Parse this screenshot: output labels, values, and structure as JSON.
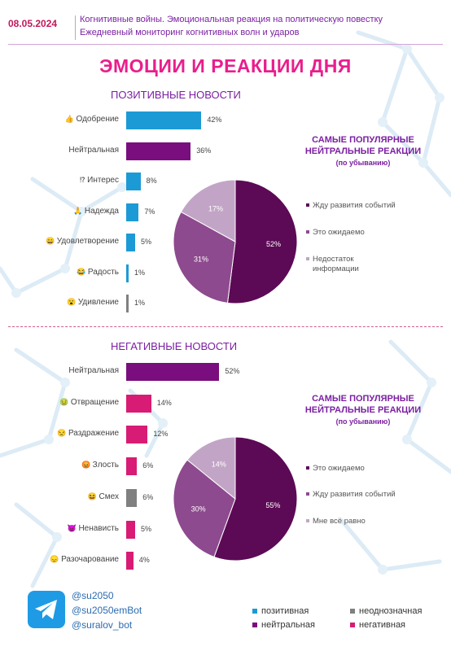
{
  "header": {
    "date": "08.05.2024",
    "subtitle_line1": "Когнитивные войны. Эмоциональная реакция на политическую повестку",
    "subtitle_line2": "Ежедневный мониторинг когнитивных волн и ударов"
  },
  "title": "ЭМОЦИИ И РЕАКЦИИ ДНЯ",
  "colors": {
    "positive": "#1c9ad6",
    "neutral": "#7a0e7e",
    "ambiguous": "#808080",
    "negative": "#d81b74",
    "pie_dark": "#5c0a55",
    "pie_mid": "#8d4a8e",
    "pie_light": "#c2a5c6"
  },
  "chart_data": [
    {
      "type": "bar",
      "title": "ПОЗИТИВНЫЕ НОВОСТИ",
      "categories": [
        "Одобрение",
        "Нейтральная",
        "Интерес",
        "Надежда",
        "Удовлетворение",
        "Радость",
        "Удивление"
      ],
      "icons": [
        "thumbs-up-icon",
        "",
        "interrobang-icon",
        "hope-icon",
        "smile-icon",
        "joy-icon",
        "surprise-icon"
      ],
      "values": [
        42,
        36,
        8,
        7,
        5,
        1,
        1
      ],
      "value_labels": [
        "42%",
        "36%",
        "8%",
        "7%",
        "5%",
        "1%",
        "1%"
      ],
      "bar_colors": [
        "positive",
        "neutral",
        "positive",
        "positive",
        "positive",
        "positive",
        "ambiguous"
      ]
    },
    {
      "type": "pie",
      "title": "САМЫЕ ПОПУЛЯРНЫЕ НЕЙТРАЛЬНЫЕ РЕАКЦИИ",
      "subtitle": "(по убыванию)",
      "labels": [
        "Жду развития событий",
        "Это ожидаемо",
        "Недостаток информации"
      ],
      "values": [
        52,
        31,
        17
      ],
      "value_labels": [
        "52%",
        "31%",
        "17%"
      ],
      "colors": [
        "pie_dark",
        "pie_mid",
        "pie_light"
      ]
    },
    {
      "type": "bar",
      "title": "НЕГАТИВНЫЕ НОВОСТИ",
      "categories": [
        "Нейтральная",
        "Отвращение",
        "Раздражение",
        "Злость",
        "Смех",
        "Ненависть",
        "Разочарование"
      ],
      "icons": [
        "",
        "disgust-icon",
        "irritation-icon",
        "anger-icon",
        "laugh-icon",
        "hate-icon",
        "disappointment-icon"
      ],
      "values": [
        52,
        14,
        12,
        6,
        6,
        5,
        4
      ],
      "value_labels": [
        "52%",
        "14%",
        "12%",
        "6%",
        "6%",
        "5%",
        "4%"
      ],
      "bar_colors": [
        "neutral",
        "negative",
        "negative",
        "negative",
        "ambiguous",
        "negative",
        "negative"
      ]
    },
    {
      "type": "pie",
      "title": "САМЫЕ ПОПУЛЯРНЫЕ НЕЙТРАЛЬНЫЕ РЕАКЦИИ",
      "subtitle": "(по убыванию)",
      "labels": [
        "Это ожидаемо",
        "Жду развития событий",
        "Мне всё равно"
      ],
      "values": [
        55,
        30,
        14
      ],
      "value_labels": [
        "55%",
        "30%",
        "14%"
      ],
      "colors": [
        "pie_dark",
        "pie_mid",
        "pie_light"
      ]
    }
  ],
  "pie_headings": {
    "top_line1": "САМЫЕ ПОПУЛЯРНЫЕ",
    "top_line2": "НЕЙТРАЛЬНЫЕ РЕАКЦИИ",
    "top_sub": "(по убыванию)",
    "bottom_line1": "САМЫЕ ПОПУЛЯРНЫЕ",
    "bottom_line2": "НЕЙТРАЛЬНЫЕ РЕАКЦИИ",
    "bottom_sub": "(по убыванию)"
  },
  "pie_legend_top": [
    "Жду развития событий",
    "Это ожидаемо",
    "Недостаток",
    "информации"
  ],
  "footer": {
    "handles": [
      "@su2050",
      "@su2050emBot",
      "@suralov_bot"
    ],
    "key": {
      "positive": "позитивная",
      "ambiguous": "неоднозначная",
      "neutral": "нейтральная",
      "negative": "негативная"
    }
  }
}
